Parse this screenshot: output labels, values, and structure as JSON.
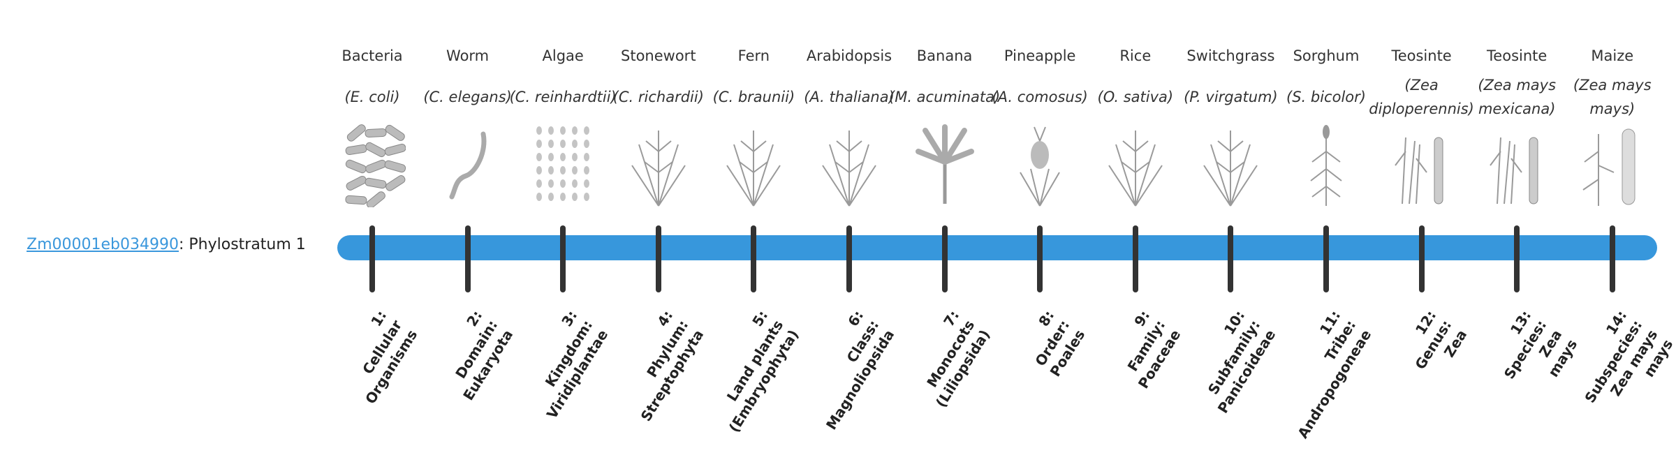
{
  "gene": {
    "id": "Zm00001eb034990",
    "suffix": ": Phylostratum 1"
  },
  "colors": {
    "bar": "#3797dc",
    "link": "#3a97dc",
    "tick": "#333333",
    "illustration": "#9a9a9a"
  },
  "strata": [
    {
      "common": "Bacteria",
      "scientific": "(E. coli)",
      "icon": "bacteria-icon",
      "label": [
        "1:",
        "Cellular",
        "Organisms"
      ]
    },
    {
      "common": "Worm",
      "scientific": "(C. elegans)",
      "icon": "worm-icon",
      "label": [
        "2:",
        "Domain:",
        "Eukaryota"
      ]
    },
    {
      "common": "Algae",
      "scientific": "(C. reinhardtii)",
      "icon": "algae-icon",
      "label": [
        "3:",
        "Kingdom:",
        "Viridiplantae"
      ]
    },
    {
      "common": "Stonewort",
      "scientific": "(C. richardii)",
      "icon": "stonewort-icon",
      "label": [
        "4:",
        "Phylum:",
        "Streptophyta"
      ]
    },
    {
      "common": "Fern",
      "scientific": "(C. braunii)",
      "icon": "fern-icon",
      "label": [
        "5:",
        "Land plants",
        "(Embryophyta)"
      ]
    },
    {
      "common": "Arabidopsis",
      "scientific": "(A. thaliana)",
      "icon": "arabidopsis-icon",
      "label": [
        "6:",
        "Class:",
        "Magnoliopsida"
      ]
    },
    {
      "common": "Banana",
      "scientific": "(M. acuminata)",
      "icon": "banana-icon",
      "label": [
        "7:",
        "Monocots",
        "(Liliopsida)"
      ]
    },
    {
      "common": "Pineapple",
      "scientific": "(A. comosus)",
      "icon": "pineapple-icon",
      "label": [
        "8:",
        "Order:",
        "Poales"
      ]
    },
    {
      "common": "Rice",
      "scientific": "(O. sativa)",
      "icon": "rice-icon",
      "label": [
        "9:",
        "Family:",
        "Poaceae"
      ]
    },
    {
      "common": "Switchgrass",
      "scientific": "(P. virgatum)",
      "icon": "switchgrass-icon",
      "label": [
        "10:",
        "Subfamily:",
        "Panicoideae"
      ]
    },
    {
      "common": "Sorghum",
      "scientific": "(S. bicolor)",
      "icon": "sorghum-icon",
      "label": [
        "11:",
        "Tribe:",
        "Andropogoneae"
      ]
    },
    {
      "common": "Teosinte",
      "scientific": "(Zea diploperennis)",
      "icon": "teosinte-icon",
      "label": [
        "12:",
        "Genus:",
        "Zea"
      ]
    },
    {
      "common": "Teosinte",
      "scientific": "(Zea mays mexicana)",
      "icon": "teosinte-icon",
      "label": [
        "13:",
        "Species:",
        "Zea",
        "mays"
      ]
    },
    {
      "common": "Maize",
      "scientific": "(Zea mays mays)",
      "icon": "maize-icon",
      "label": [
        "14:",
        "Subspecies:",
        "Zea mays",
        "mays"
      ]
    }
  ]
}
